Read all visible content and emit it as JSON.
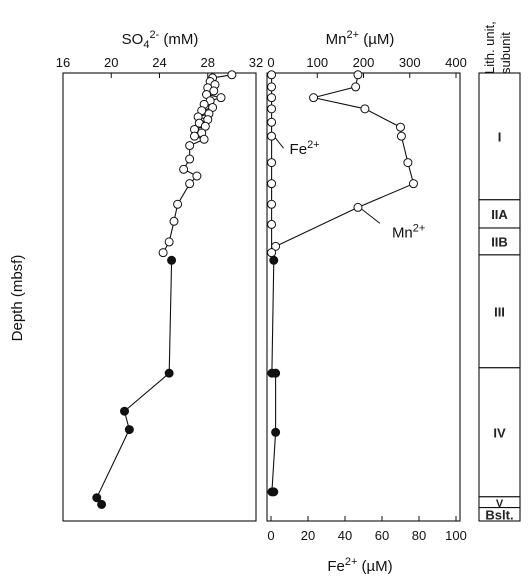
{
  "chart_data": [
    {
      "type": "line",
      "panel": "sulfate",
      "title_html": {
        "base": "SO",
        "sub": "4",
        "sup": "2-",
        "unit": " (mM)"
      },
      "ylabel": "Depth (mbsf)",
      "xlim": [
        16,
        32
      ],
      "xticks": [
        16,
        20,
        24,
        28,
        32
      ],
      "x_axis_position": "top",
      "depth_range": [
        0,
        100
      ],
      "series": [
        {
          "marker": "open-circle",
          "points": [
            {
              "x": 30.0,
              "depth": 0.4
            },
            {
              "x": 28.4,
              "depth": 1.1
            },
            {
              "x": 28.2,
              "depth": 1.9
            },
            {
              "x": 28.6,
              "depth": 2.6
            },
            {
              "x": 28.0,
              "depth": 3.3
            },
            {
              "x": 28.5,
              "depth": 4.0
            },
            {
              "x": 27.9,
              "depth": 4.8
            },
            {
              "x": 29.1,
              "depth": 5.5
            },
            {
              "x": 28.2,
              "depth": 6.2
            },
            {
              "x": 27.7,
              "depth": 7.0
            },
            {
              "x": 28.4,
              "depth": 7.7
            },
            {
              "x": 27.5,
              "depth": 8.4
            },
            {
              "x": 28.1,
              "depth": 9.1
            },
            {
              "x": 27.2,
              "depth": 9.8
            },
            {
              "x": 28.0,
              "depth": 10.4
            },
            {
              "x": 27.3,
              "depth": 11.2
            },
            {
              "x": 27.8,
              "depth": 11.9
            },
            {
              "x": 26.9,
              "depth": 12.6
            },
            {
              "x": 27.5,
              "depth": 13.4
            },
            {
              "x": 26.9,
              "depth": 14.1
            },
            {
              "x": 27.7,
              "depth": 14.8
            },
            {
              "x": 26.5,
              "depth": 16.2
            },
            {
              "x": 26.5,
              "depth": 19.2
            },
            {
              "x": 26.0,
              "depth": 21.5
            },
            {
              "x": 27.1,
              "depth": 23.0
            },
            {
              "x": 26.5,
              "depth": 24.7
            },
            {
              "x": 25.5,
              "depth": 29.3
            },
            {
              "x": 25.2,
              "depth": 33.1
            },
            {
              "x": 24.8,
              "depth": 37.7
            },
            {
              "x": 24.3,
              "depth": 40.1
            }
          ]
        },
        {
          "marker": "filled-circle",
          "points": [
            {
              "x": 25.0,
              "depth": 41.8
            },
            {
              "x": 24.8,
              "depth": 67.0
            },
            {
              "x": 21.1,
              "depth": 75.5
            },
            {
              "x": 21.5,
              "depth": 79.6
            },
            {
              "x": 18.8,
              "depth": 94.8
            },
            {
              "x": 19.2,
              "depth": 96.3
            }
          ]
        }
      ]
    },
    {
      "type": "line",
      "panel": "manganese-iron",
      "title_html": {
        "base": "Mn",
        "sup": "2+",
        "unit": " (µM)"
      },
      "xlim_top": [
        0,
        400
      ],
      "xticks_top": [
        0,
        100,
        200,
        300,
        400
      ],
      "top_axis_label": "Mn2+ (µM)",
      "xlim_bottom": [
        0,
        100
      ],
      "xticks_bottom": [
        0,
        20,
        40,
        60,
        80,
        100
      ],
      "bottom_axis_label_html": {
        "base": "Fe",
        "sup": "2+",
        "unit": " (µM)"
      },
      "depth_range": [
        0,
        100
      ],
      "series": [
        {
          "name": "Mn2+",
          "axis": "top",
          "marker": "open-circle",
          "points": [
            {
              "x": 188,
              "depth": 0.4
            },
            {
              "x": 183,
              "depth": 3.1
            },
            {
              "x": 92,
              "depth": 5.5
            },
            {
              "x": 203,
              "depth": 8.0
            },
            {
              "x": 280,
              "depth": 12.1
            },
            {
              "x": 282,
              "depth": 14.1
            },
            {
              "x": 296,
              "depth": 20.0
            },
            {
              "x": 308,
              "depth": 24.7
            },
            {
              "x": 188,
              "depth": 30.0
            },
            {
              "x": 10,
              "depth": 38.7
            }
          ]
        },
        {
          "name": "Fe2+",
          "axis": "bottom",
          "marker": "open-circle",
          "points": [
            {
              "x": 0.3,
              "depth": 0.4
            },
            {
              "x": 0.3,
              "depth": 3.1
            },
            {
              "x": 0.3,
              "depth": 5.5
            },
            {
              "x": 0.3,
              "depth": 8.0
            },
            {
              "x": 0.3,
              "depth": 11.0
            },
            {
              "x": 0.3,
              "depth": 14.1
            },
            {
              "x": 0.3,
              "depth": 20.0
            },
            {
              "x": 0.3,
              "depth": 24.7
            },
            {
              "x": 0.3,
              "depth": 29.3
            },
            {
              "x": 0.3,
              "depth": 33.8
            },
            {
              "x": 0.3,
              "depth": 40.1
            }
          ]
        },
        {
          "name": "Fe2+ (filled)",
          "axis": "bottom",
          "marker": "filled-circle",
          "points": [
            {
              "x": 1.5,
              "depth": 41.8
            },
            {
              "x": 0.5,
              "depth": 67.0
            },
            {
              "x": 2.5,
              "depth": 67.0
            },
            {
              "x": 2.5,
              "depth": 80.2
            },
            {
              "x": 0.5,
              "depth": 93.5
            },
            {
              "x": 1.5,
              "depth": 93.5
            }
          ]
        }
      ],
      "annotations": [
        {
          "label_html": {
            "base": "Fe",
            "sup": "2+"
          },
          "target_series": "Fe2+",
          "target_depth": 14.1
        },
        {
          "label_html": {
            "base": "Mn",
            "sup": "2+"
          },
          "target_series": "Mn2+",
          "target_depth": 30.0
        }
      ]
    },
    {
      "type": "table",
      "panel": "lithology",
      "header": [
        "Lith. unit,",
        "subunit"
      ],
      "units": [
        {
          "label": "I",
          "from": 0,
          "to": 28.3
        },
        {
          "label": "IIA",
          "from": 28.3,
          "to": 34.6
        },
        {
          "label": "IIB",
          "from": 34.6,
          "to": 40.6
        },
        {
          "label": "III",
          "from": 40.6,
          "to": 65.8
        },
        {
          "label": "IV",
          "from": 65.8,
          "to": 94.6
        },
        {
          "label": "V",
          "from": 94.6,
          "to": 97.0
        },
        {
          "label": "Bslt.",
          "from": 97.0,
          "to": 100
        }
      ]
    }
  ]
}
